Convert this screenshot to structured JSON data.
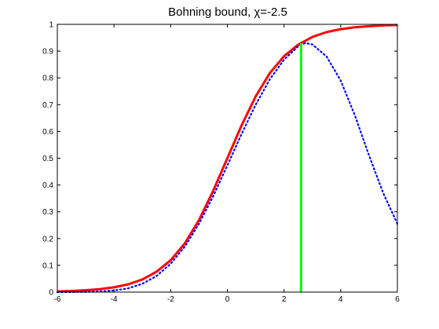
{
  "chart_data": {
    "type": "line",
    "title": "Bohning bound, χ=-2.5",
    "xlim": [
      -6,
      6
    ],
    "ylim": [
      0,
      1
    ],
    "xticks": [
      -6,
      -4,
      -2,
      0,
      2,
      4,
      6
    ],
    "yticks": [
      0,
      0.1,
      0.2,
      0.3,
      0.4,
      0.5,
      0.6,
      0.7,
      0.8,
      0.9,
      1
    ],
    "grid": false,
    "series": [
      {
        "color": "#ff0000",
        "style": "solid",
        "x": [
          -6,
          -5.5,
          -5,
          -4.5,
          -4,
          -3.5,
          -3,
          -2.5,
          -2,
          -1.5,
          -1,
          -0.5,
          0,
          0.5,
          1,
          1.5,
          2,
          2.5,
          3,
          3.5,
          4,
          4.5,
          5,
          5.5,
          6
        ],
        "y": [
          0.0025,
          0.004,
          0.007,
          0.011,
          0.018,
          0.029,
          0.047,
          0.076,
          0.119,
          0.182,
          0.269,
          0.378,
          0.5,
          0.622,
          0.731,
          0.818,
          0.881,
          0.924,
          0.953,
          0.971,
          0.982,
          0.989,
          0.993,
          0.996,
          0.9975
        ]
      },
      {
        "color": "#0000ff",
        "style": "dotted",
        "x": [
          -6,
          -5.5,
          -5,
          -4.5,
          -4,
          -3.5,
          -3,
          -2.5,
          -2,
          -1.5,
          -1,
          -0.5,
          0,
          0.5,
          1,
          1.5,
          2,
          2.5,
          2.75,
          3,
          3.5,
          4,
          4.5,
          5,
          5.5,
          6
        ],
        "y": [
          0.0,
          0.0003,
          0.0008,
          0.0023,
          0.006,
          0.014,
          0.031,
          0.06,
          0.106,
          0.17,
          0.255,
          0.358,
          0.473,
          0.59,
          0.7,
          0.795,
          0.868,
          0.918,
          0.93,
          0.925,
          0.88,
          0.79,
          0.66,
          0.51,
          0.37,
          0.255
        ]
      },
      {
        "color": "#00ff00",
        "style": "solid",
        "x": [
          2.6,
          2.6
        ],
        "y": [
          0,
          0.93
        ]
      }
    ]
  }
}
